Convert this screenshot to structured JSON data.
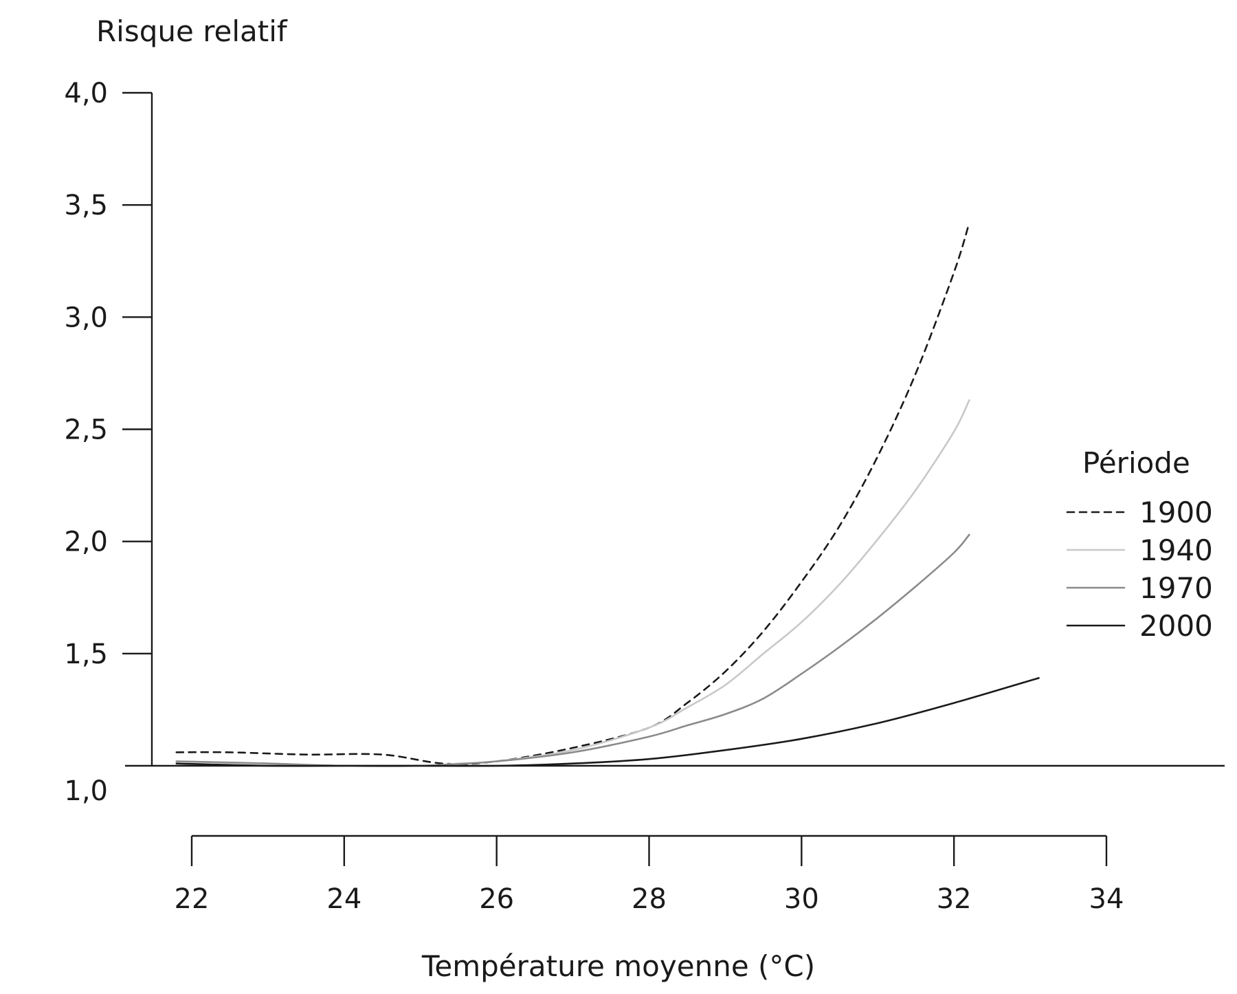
{
  "chart_data": {
    "type": "line",
    "title": "",
    "ylabel": "Risque relatif",
    "xlabel": "Température moyenne (°C)",
    "ylim": [
      1.0,
      4.0
    ],
    "xlim": [
      22,
      34
    ],
    "yticks": [
      1.0,
      1.5,
      2.0,
      2.5,
      3.0,
      3.5,
      4.0
    ],
    "ytick_labels": [
      "1,0",
      "1,5",
      "2,0",
      "2,5",
      "3,0",
      "3,5",
      "4,0"
    ],
    "xticks": [
      22,
      24,
      26,
      28,
      30,
      32,
      34
    ],
    "xtick_labels": [
      "22",
      "24",
      "26",
      "28",
      "30",
      "32",
      "34"
    ],
    "grid": false,
    "legend": {
      "title": "Période",
      "placement": "right"
    },
    "series": [
      {
        "name": "1900",
        "color": "#1a1a1a",
        "dash": "dashed",
        "x": [
          21.8,
          22.5,
          23.5,
          24.5,
          25.3,
          26.0,
          27.0,
          28.0,
          28.5,
          29.0,
          29.5,
          30.0,
          30.5,
          31.0,
          31.5,
          32.0,
          32.2
        ],
        "y": [
          1.06,
          1.06,
          1.05,
          1.05,
          1.01,
          1.02,
          1.08,
          1.17,
          1.28,
          1.42,
          1.6,
          1.82,
          2.07,
          2.38,
          2.75,
          3.2,
          3.42
        ]
      },
      {
        "name": "1940",
        "color": "#c8c8c8",
        "dash": "solid",
        "x": [
          21.8,
          23.0,
          24.0,
          25.0,
          25.5,
          26.0,
          27.0,
          28.0,
          28.5,
          29.0,
          29.5,
          30.0,
          30.5,
          31.0,
          31.5,
          32.0,
          32.2
        ],
        "y": [
          1.02,
          1.01,
          1.0,
          1.0,
          1.01,
          1.02,
          1.07,
          1.17,
          1.26,
          1.36,
          1.5,
          1.64,
          1.81,
          2.01,
          2.23,
          2.49,
          2.63
        ]
      },
      {
        "name": "1970",
        "color": "#8a8a8a",
        "dash": "solid",
        "x": [
          21.8,
          23.0,
          24.0,
          25.0,
          26.0,
          27.0,
          28.0,
          28.5,
          29.0,
          29.5,
          30.0,
          30.5,
          31.0,
          31.5,
          32.0,
          32.2
        ],
        "y": [
          1.02,
          1.01,
          1.0,
          1.0,
          1.02,
          1.06,
          1.13,
          1.18,
          1.23,
          1.3,
          1.41,
          1.53,
          1.66,
          1.8,
          1.95,
          2.03
        ]
      },
      {
        "name": "2000",
        "color": "#1a1a1a",
        "dash": "solid",
        "x": [
          21.8,
          23.0,
          24.0,
          25.0,
          26.0,
          27.0,
          28.0,
          29.0,
          30.0,
          31.0,
          32.0,
          33.0,
          33.1
        ],
        "y": [
          1.01,
          1.0,
          1.0,
          1.0,
          1.0,
          1.01,
          1.03,
          1.07,
          1.12,
          1.19,
          1.28,
          1.38,
          1.39
        ]
      }
    ]
  }
}
